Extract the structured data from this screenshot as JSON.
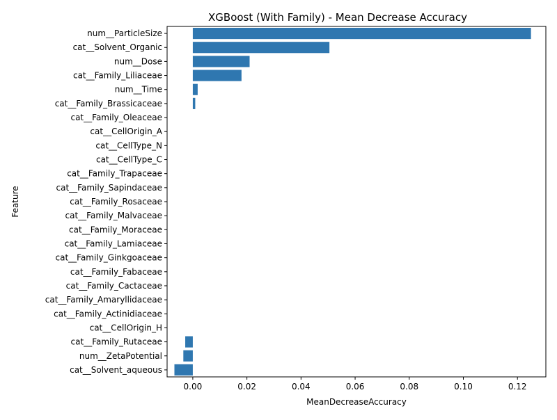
{
  "chart_data": {
    "type": "bar",
    "orientation": "horizontal",
    "title": "XGBoost (With Family) - Mean Decrease Accuracy",
    "xlabel": "MeanDecreaseAccuracy",
    "ylabel": "Feature",
    "xlim": [
      -0.0095,
      0.1305
    ],
    "xticks": [
      0.0,
      0.02,
      0.04,
      0.06,
      0.08,
      0.1,
      0.12
    ],
    "xtick_labels": [
      "0.00",
      "0.02",
      "0.04",
      "0.06",
      "0.08",
      "0.10",
      "0.12"
    ],
    "bar_color": "#2f77b0",
    "grid": false,
    "legend": "none",
    "categories": [
      "num__ParticleSize",
      "cat__Solvent_Organic",
      "num__Dose",
      "cat__Family_Liliaceae",
      "num__Time",
      "cat__Family_Brassicaceae",
      "cat__Family_Oleaceae",
      "cat__CellOrigin_A",
      "cat__CellType_N",
      "cat__CellType_C",
      "cat__Family_Trapaceae",
      "cat__Family_Sapindaceae",
      "cat__Family_Rosaceae",
      "cat__Family_Malvaceae",
      "cat__Family_Moraceae",
      "cat__Family_Lamiaceae",
      "cat__Family_Ginkgoaceae",
      "cat__Family_Fabaceae",
      "cat__Family_Cactaceae",
      "cat__Family_Amaryllidaceae",
      "cat__Family_Actinidiaceae ",
      "cat__CellOrigin_H",
      "cat__Family_Rutaceae",
      "num__ZetaPotential",
      "cat__Solvent_aqueous"
    ],
    "values": [
      0.125,
      0.0505,
      0.021,
      0.018,
      0.0018,
      0.0009,
      0,
      0,
      0,
      0,
      0,
      0,
      0,
      0,
      0,
      0,
      0,
      0,
      0,
      0,
      0,
      0,
      -0.0028,
      -0.0035,
      -0.0068
    ]
  }
}
